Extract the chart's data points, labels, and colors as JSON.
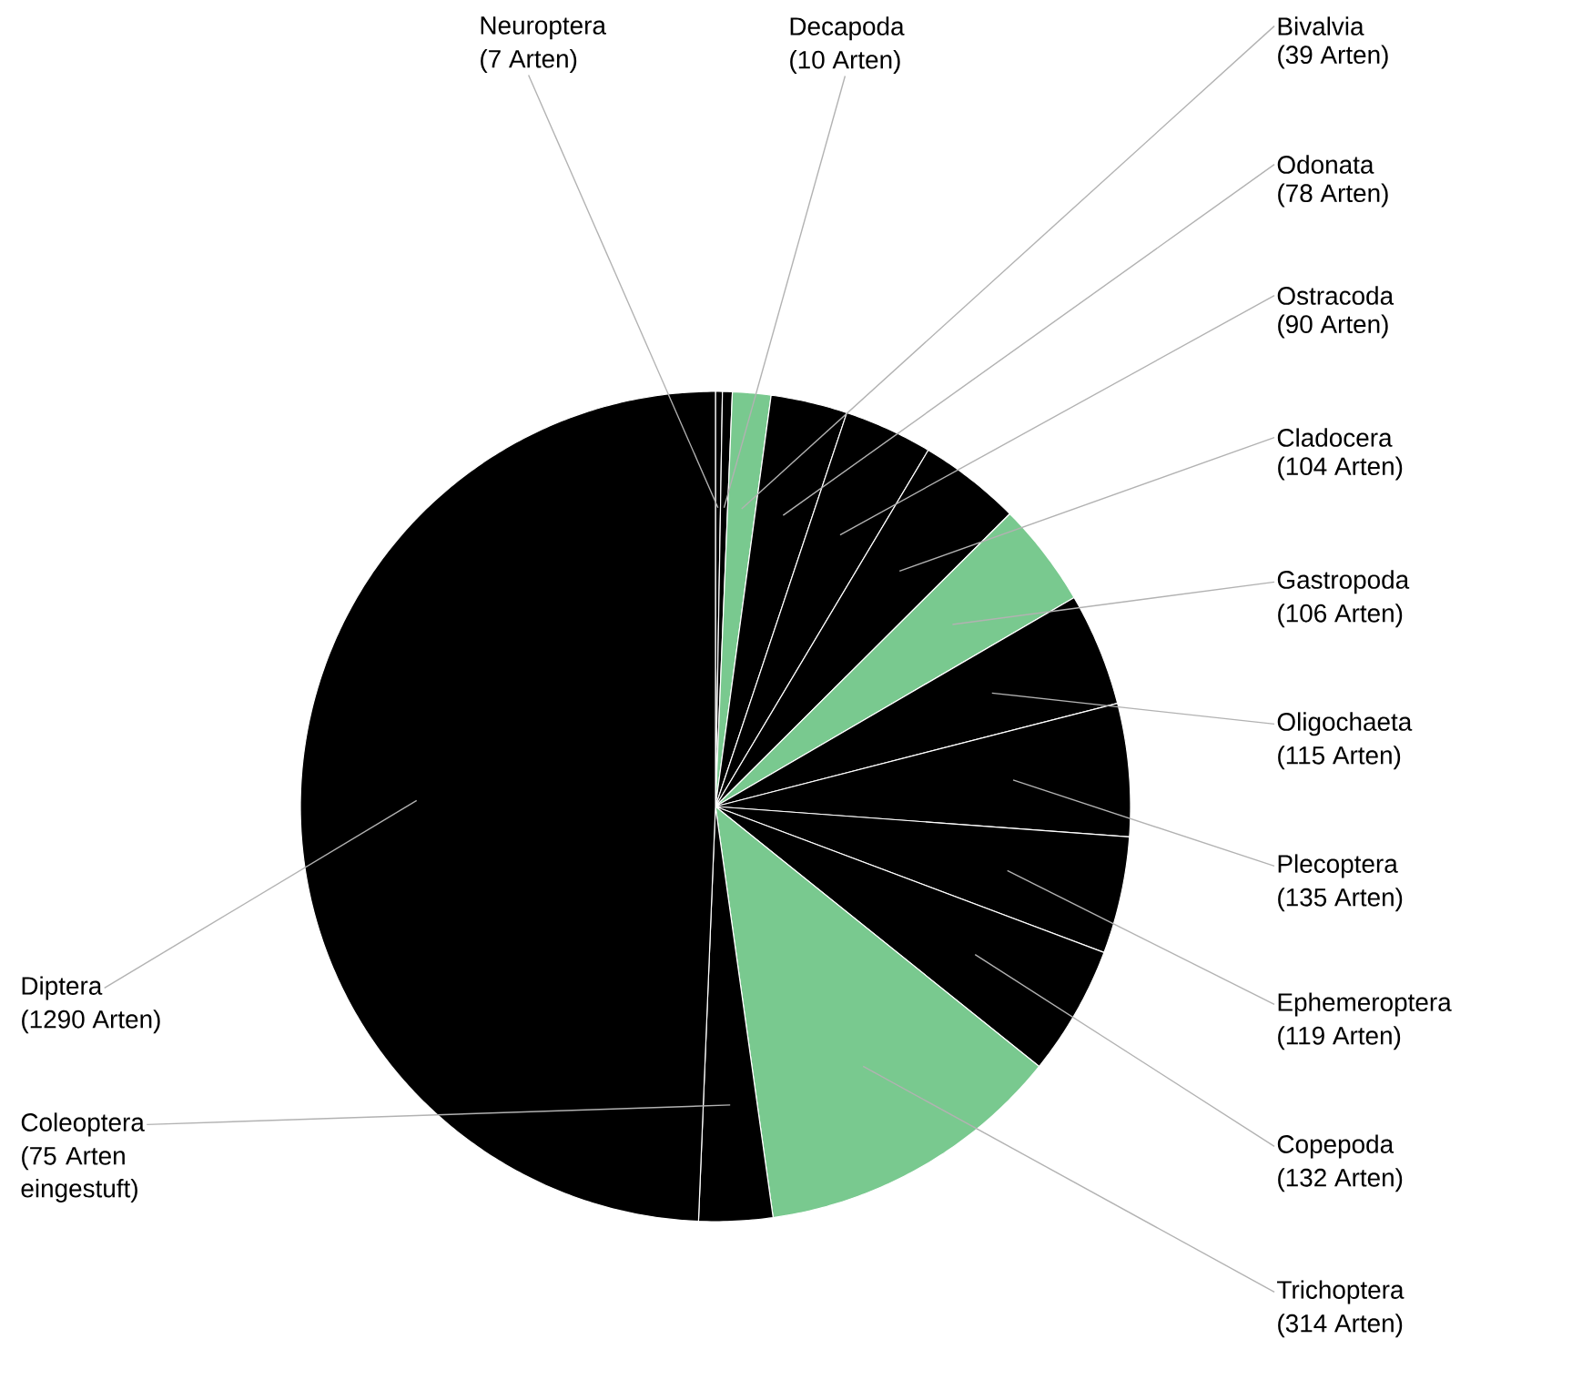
{
  "chart_data": {
    "type": "pie",
    "categories": [
      "Neuroptera",
      "Decapoda",
      "Bivalvia",
      "Odonata",
      "Ostracoda",
      "Cladocera",
      "Gastropoda",
      "Oligochaeta",
      "Plecoptera",
      "Ephemeroptera",
      "Copepoda",
      "Trichoptera",
      "Coleoptera",
      "Diptera"
    ],
    "values": [
      7,
      10,
      39,
      78,
      90,
      104,
      106,
      115,
      135,
      119,
      132,
      314,
      75,
      1290
    ],
    "value_labels": [
      "(7 Arten)",
      "(10 Arten)",
      "(39 Arten)",
      "(78 Arten)",
      "(90 Arten)",
      "(104 Arten)",
      "(106 Arten)",
      "(115 Arten)",
      "(135 Arten)",
      "(119 Arten)",
      "(132 Arten)",
      "(314 Arten)",
      "(75 Arten eingestuft)",
      "(1290 Arten)"
    ],
    "colors": [
      "#000000",
      "#000000",
      "#79c98f",
      "#000000",
      "#000000",
      "#000000",
      "#79c98f",
      "#000000",
      "#000000",
      "#000000",
      "#000000",
      "#79c98f",
      "#000000",
      "#000000"
    ]
  }
}
